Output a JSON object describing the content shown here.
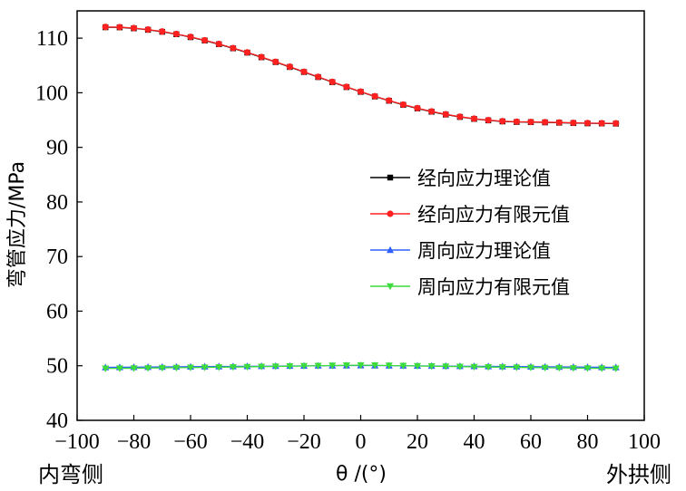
{
  "chart_data": {
    "type": "line",
    "xlabel": "θ /(°)",
    "ylabel": "弯管应力/MPa",
    "xlim": [
      -100,
      100
    ],
    "ylim": [
      40,
      115
    ],
    "xticks": [
      -100,
      -80,
      -60,
      -40,
      -20,
      0,
      20,
      40,
      60,
      80,
      100
    ],
    "xtick_labels": [
      "−100",
      "−80",
      "−60",
      "−40",
      "−20",
      "0",
      "20",
      "40",
      "60",
      "80",
      "100"
    ],
    "yticks": [
      40,
      50,
      60,
      70,
      80,
      90,
      100,
      110
    ],
    "ytick_labels": [
      "40",
      "50",
      "60",
      "70",
      "80",
      "90",
      "100",
      "110"
    ],
    "side_labels": {
      "left": "内弯侧",
      "right": "外拱侧"
    },
    "legend_position": "center-right",
    "grid": false,
    "x": [
      -90,
      -85,
      -80,
      -75,
      -70,
      -65,
      -60,
      -55,
      -50,
      -45,
      -40,
      -35,
      -30,
      -25,
      -20,
      -15,
      -10,
      -5,
      0,
      5,
      10,
      15,
      20,
      25,
      30,
      35,
      40,
      45,
      50,
      55,
      60,
      65,
      70,
      75,
      80,
      85,
      90
    ],
    "series": [
      {
        "name": "经向应力理论值",
        "color": "#000000",
        "marker": "square",
        "values": [
          112.0,
          111.98,
          111.8,
          111.53,
          111.17,
          110.72,
          110.18,
          109.57,
          108.89,
          108.14,
          107.35,
          106.5,
          105.62,
          104.72,
          103.8,
          102.87,
          101.95,
          101.04,
          100.16,
          99.32,
          98.53,
          97.79,
          97.13,
          96.53,
          96.01,
          95.57,
          95.21,
          94.94,
          94.75,
          94.65,
          94.62,
          94.58,
          94.52,
          94.45,
          94.4,
          94.38,
          94.35
        ]
      },
      {
        "name": "经向应力有限元值",
        "color": "#ff2020",
        "marker": "circle",
        "values": [
          112.05,
          112.02,
          111.85,
          111.58,
          111.22,
          110.77,
          110.23,
          109.62,
          108.94,
          108.19,
          107.4,
          106.55,
          105.67,
          104.77,
          103.85,
          102.92,
          102.0,
          101.09,
          100.21,
          99.37,
          98.58,
          97.84,
          97.18,
          96.58,
          96.06,
          95.62,
          95.26,
          94.99,
          94.8,
          94.7,
          94.66,
          94.62,
          94.56,
          94.5,
          94.45,
          94.42,
          94.4
        ]
      },
      {
        "name": "周向应力理论值",
        "color": "#3060ff",
        "marker": "triangle-up",
        "values": [
          49.7,
          49.72,
          49.74,
          49.76,
          49.78,
          49.8,
          49.82,
          49.84,
          49.86,
          49.88,
          49.9,
          49.92,
          49.94,
          49.96,
          49.98,
          50.0,
          50.02,
          50.04,
          50.05,
          50.04,
          50.02,
          50.0,
          49.98,
          49.96,
          49.94,
          49.92,
          49.9,
          49.88,
          49.86,
          49.84,
          49.82,
          49.8,
          49.78,
          49.76,
          49.74,
          49.72,
          49.7
        ]
      },
      {
        "name": "周向应力有限元值",
        "color": "#3ddc3d",
        "marker": "triangle-down",
        "values": [
          49.5,
          49.52,
          49.55,
          49.58,
          49.61,
          49.64,
          49.67,
          49.7,
          49.73,
          49.76,
          49.8,
          49.84,
          49.88,
          49.92,
          49.96,
          50.0,
          50.04,
          50.08,
          50.1,
          50.08,
          50.04,
          50.0,
          49.96,
          49.92,
          49.88,
          49.84,
          49.8,
          49.76,
          49.73,
          49.7,
          49.67,
          49.64,
          49.61,
          49.58,
          49.55,
          49.52,
          49.5
        ]
      }
    ]
  }
}
